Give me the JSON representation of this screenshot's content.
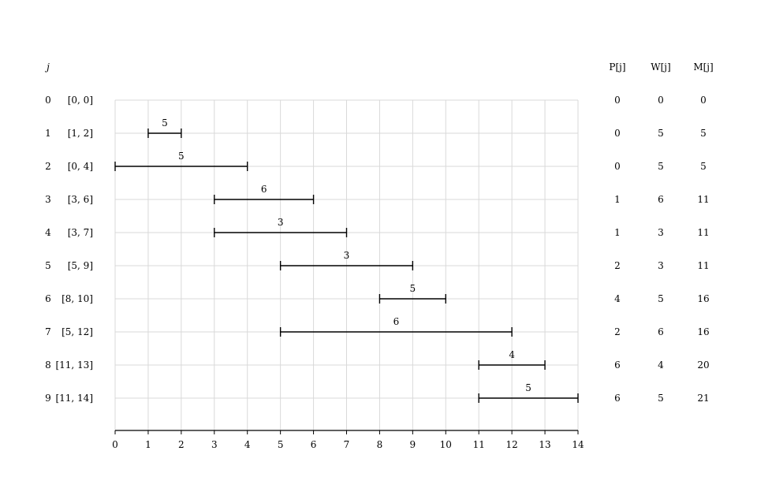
{
  "headers": {
    "j": "j",
    "P": "P[j]",
    "W": "W[j]",
    "M": "M[j]"
  },
  "x_ticks": [
    "0",
    "1",
    "2",
    "3",
    "4",
    "5",
    "6",
    "7",
    "8",
    "9",
    "10",
    "11",
    "12",
    "13",
    "14"
  ],
  "x_range": [
    0,
    14
  ],
  "rows": [
    {
      "j": "0",
      "label": "[0, 0]",
      "start": 0,
      "end": 0,
      "weight": null,
      "P": "0",
      "W": "0",
      "M": "0"
    },
    {
      "j": "1",
      "label": "[1, 2]",
      "start": 1,
      "end": 2,
      "weight": "5",
      "P": "0",
      "W": "5",
      "M": "5"
    },
    {
      "j": "2",
      "label": "[0, 4]",
      "start": 0,
      "end": 4,
      "weight": "5",
      "P": "0",
      "W": "5",
      "M": "5"
    },
    {
      "j": "3",
      "label": "[3, 6]",
      "start": 3,
      "end": 6,
      "weight": "6",
      "P": "1",
      "W": "6",
      "M": "11"
    },
    {
      "j": "4",
      "label": "[3, 7]",
      "start": 3,
      "end": 7,
      "weight": "3",
      "P": "1",
      "W": "3",
      "M": "11"
    },
    {
      "j": "5",
      "label": "[5, 9]",
      "start": 5,
      "end": 9,
      "weight": "3",
      "P": "2",
      "W": "3",
      "M": "11"
    },
    {
      "j": "6",
      "label": "[8, 10]",
      "start": 8,
      "end": 10,
      "weight": "5",
      "P": "4",
      "W": "5",
      "M": "16"
    },
    {
      "j": "7",
      "label": "[5, 12]",
      "start": 5,
      "end": 12,
      "weight": "6",
      "P": "2",
      "W": "6",
      "M": "16"
    },
    {
      "j": "8",
      "label": "[11, 13]",
      "start": 11,
      "end": 13,
      "weight": "4",
      "P": "6",
      "W": "4",
      "M": "20"
    },
    {
      "j": "9",
      "label": "[11, 14]",
      "start": 11,
      "end": 14,
      "weight": "5",
      "P": "6",
      "W": "5",
      "M": "21"
    }
  ],
  "colors": {
    "grid": "#d9d9d9",
    "line": "#000000"
  }
}
